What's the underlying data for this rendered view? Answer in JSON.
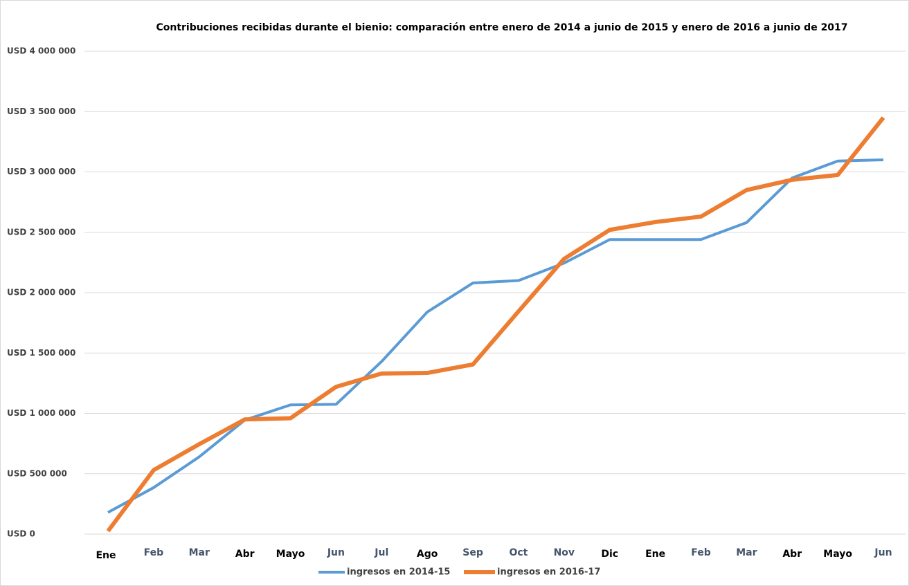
{
  "chart_data": {
    "type": "line",
    "title": "Contribuciones recibidas durante el bienio: comparación  entre enero de 2014 a junio de 2015 y enero de 2016 a junio de 2017",
    "categories": [
      "Ene",
      "Feb",
      "Mar",
      "Abr",
      "Mayo",
      "Jun",
      "Jul",
      "Ago",
      "Sep",
      "Oct",
      "Nov",
      "Dic",
      "Ene",
      "Feb",
      "Mar",
      "Abr",
      "Mayo",
      "Jun"
    ],
    "series": [
      {
        "name": "ingresos en 2014-15",
        "color": "#5b9bd5",
        "values": [
          180000,
          385000,
          640000,
          945000,
          1070000,
          1075000,
          1430000,
          1840000,
          2080000,
          2100000,
          2245000,
          2440000,
          2440000,
          2440000,
          2580000,
          2950000,
          3090000,
          3100000
        ]
      },
      {
        "name": "ingresos en 2016-17",
        "color": "#ed7d31",
        "values": [
          25000,
          530000,
          745000,
          950000,
          960000,
          1220000,
          1330000,
          1335000,
          1405000,
          1845000,
          2280000,
          2520000,
          2585000,
          2630000,
          2850000,
          2935000,
          2975000,
          3450000
        ]
      }
    ],
    "ylim": [
      0,
      4000000
    ],
    "yticks": [
      {
        "value": 0,
        "label": "USD 0"
      },
      {
        "value": 500000,
        "label": "USD 500 000"
      },
      {
        "value": 1000000,
        "label": "USD 1 000 000"
      },
      {
        "value": 1500000,
        "label": "USD 1 500 000"
      },
      {
        "value": 2000000,
        "label": "USD 2 000 000"
      },
      {
        "value": 2500000,
        "label": "USD 2 500 000"
      },
      {
        "value": 3000000,
        "label": "USD 3 000 000"
      },
      {
        "value": 3500000,
        "label": "USD 3 500 000"
      },
      {
        "value": 4000000,
        "label": "USD 4 000 000"
      }
    ],
    "grid": true,
    "legend": "bottom"
  }
}
